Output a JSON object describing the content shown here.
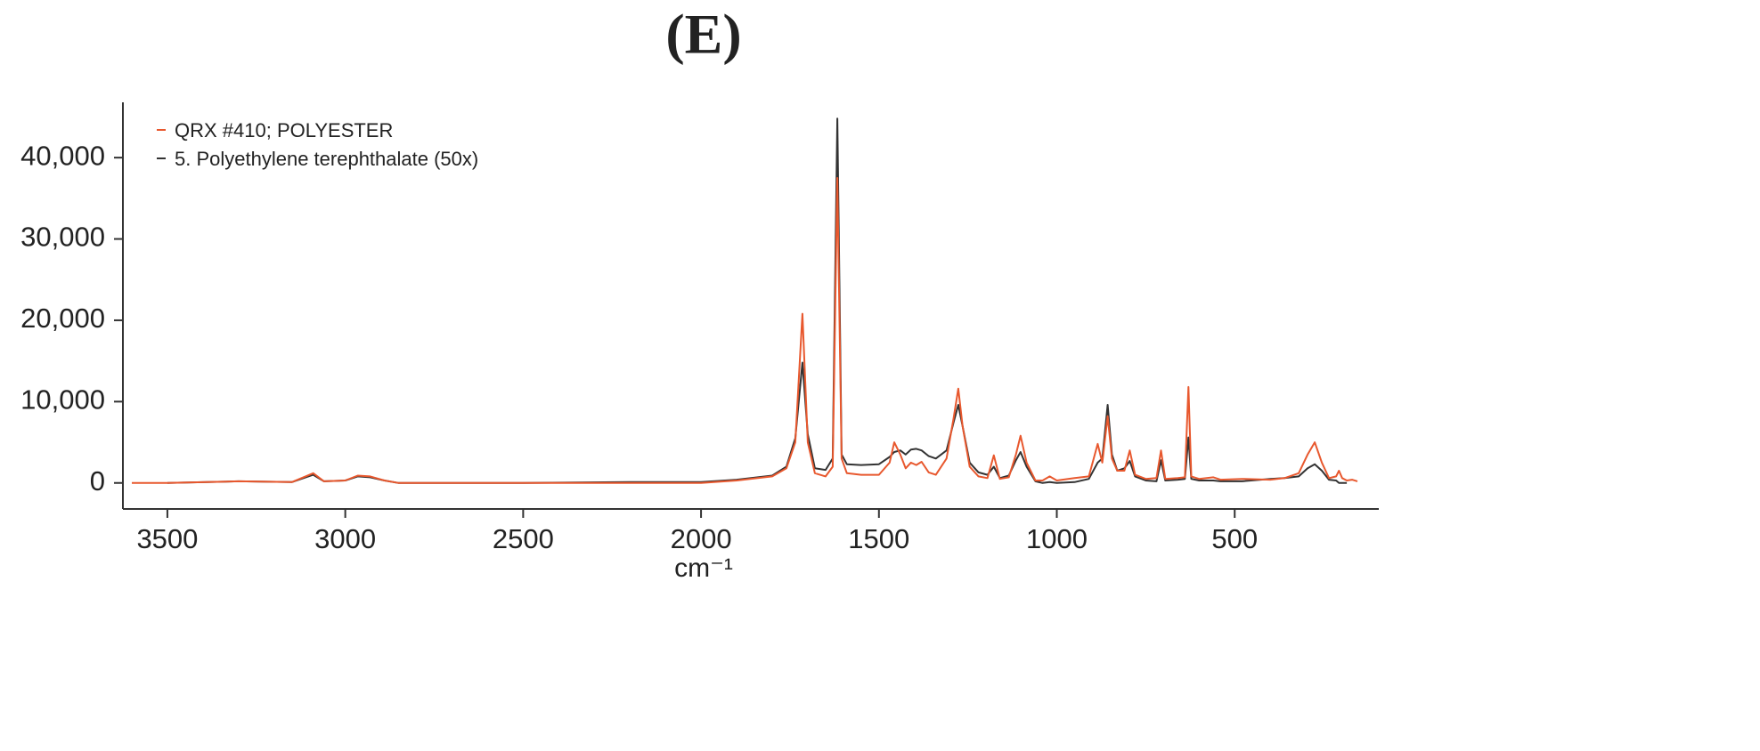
{
  "chart_data": {
    "type": "line",
    "title": "(E)",
    "xlabel": "cm⁻¹",
    "x": [
      3600,
      3500,
      3300,
      3150,
      3090,
      3060,
      3000,
      2965,
      2930,
      2890,
      2850,
      2500,
      2200,
      2000,
      1900,
      1800,
      1760,
      1735,
      1715,
      1700,
      1680,
      1650,
      1630,
      1617,
      1605,
      1590,
      1550,
      1500,
      1470,
      1457,
      1440,
      1425,
      1410,
      1395,
      1380,
      1360,
      1340,
      1310,
      1290,
      1277,
      1265,
      1245,
      1220,
      1195,
      1177,
      1160,
      1135,
      1115,
      1102,
      1085,
      1060,
      1040,
      1020,
      1000,
      950,
      910,
      885,
      872,
      857,
      845,
      830,
      810,
      795,
      780,
      750,
      720,
      707,
      695,
      660,
      640,
      630,
      622,
      600,
      560,
      540,
      480,
      400,
      360,
      320,
      295,
      275,
      255,
      235,
      215,
      207,
      198,
      185,
      170,
      155
    ],
    "series": [
      {
        "name": "QRX #410; POLYESTER",
        "color": "#e8582e",
        "values": [
          0,
          0,
          200,
          100,
          1200,
          200,
          300,
          900,
          800,
          300,
          0,
          0,
          0,
          0,
          300,
          800,
          1800,
          5000,
          20800,
          5000,
          1200,
          800,
          2000,
          37500,
          3000,
          1200,
          1000,
          1000,
          2500,
          5000,
          3500,
          1800,
          2500,
          2200,
          2600,
          1300,
          1000,
          3000,
          8000,
          11600,
          7000,
          2000,
          800,
          600,
          3400,
          500,
          700,
          3500,
          5800,
          2500,
          300,
          300,
          800,
          300,
          600,
          800,
          4800,
          2500,
          8200,
          3000,
          1500,
          1500,
          4000,
          1000,
          500,
          600,
          4000,
          500,
          600,
          700,
          11800,
          800,
          500,
          700,
          400,
          500,
          400,
          600,
          1200,
          3500,
          5000,
          2500,
          600,
          800,
          1500,
          600,
          300,
          400,
          200
        ]
      },
      {
        "name": "5. Polyethylene terephthalate (50x)",
        "color": "#333333",
        "values": [
          null,
          0,
          200,
          100,
          1000,
          200,
          300,
          800,
          700,
          300,
          0,
          0,
          100,
          100,
          400,
          900,
          2000,
          5500,
          14800,
          6000,
          1800,
          1600,
          3000,
          44800,
          3500,
          2300,
          2200,
          2300,
          3200,
          3800,
          4000,
          3500,
          4100,
          4200,
          4000,
          3300,
          3000,
          4000,
          7500,
          9600,
          7000,
          2500,
          1300,
          1000,
          2000,
          600,
          900,
          2800,
          3800,
          2000,
          200,
          0,
          100,
          0,
          100,
          500,
          2500,
          3000,
          9600,
          3500,
          1500,
          1800,
          2700,
          800,
          300,
          200,
          2800,
          300,
          400,
          500,
          5600,
          500,
          300,
          300,
          200,
          200,
          500,
          600,
          800,
          1800,
          2300,
          1500,
          400,
          300,
          0,
          0,
          0,
          null,
          null
        ]
      }
    ],
    "xlim": [
      3625,
      95
    ],
    "ylim": [
      -3200,
      46800
    ],
    "xticks": [
      3500,
      3000,
      2500,
      2000,
      1500,
      1000,
      500
    ],
    "yticks": [
      0,
      {
        "value": 10000,
        "label": "10,000"
      },
      {
        "value": 20000,
        "label": "20,000"
      },
      {
        "value": 30000,
        "label": "30,000"
      },
      {
        "value": 40000,
        "label": "40,000"
      }
    ],
    "legend": "upper left",
    "grid": false
  }
}
